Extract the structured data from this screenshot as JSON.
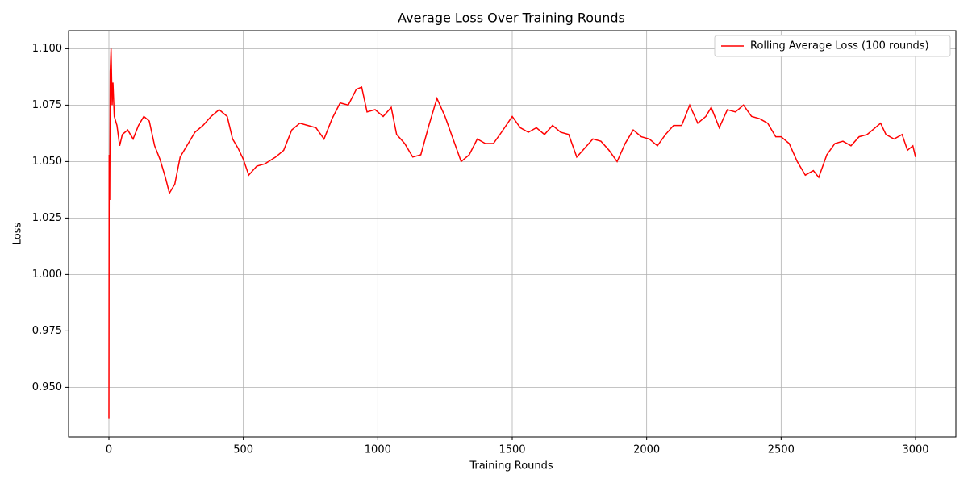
{
  "chart_data": {
    "type": "line",
    "title": "Average Loss Over Training Rounds",
    "xlabel": "Training Rounds",
    "ylabel": "Loss",
    "x": [
      0,
      1,
      3,
      5,
      8,
      12,
      15,
      20,
      30,
      40,
      50,
      70,
      90,
      110,
      130,
      150,
      170,
      190,
      210,
      225,
      245,
      265,
      290,
      320,
      350,
      380,
      410,
      440,
      460,
      480,
      500,
      520,
      550,
      580,
      620,
      650,
      680,
      710,
      740,
      770,
      800,
      830,
      860,
      890,
      920,
      940,
      960,
      990,
      1020,
      1050,
      1070,
      1100,
      1130,
      1160,
      1190,
      1220,
      1250,
      1280,
      1310,
      1340,
      1370,
      1400,
      1430,
      1460,
      1500,
      1530,
      1560,
      1590,
      1620,
      1650,
      1680,
      1710,
      1740,
      1770,
      1800,
      1830,
      1860,
      1890,
      1920,
      1950,
      1980,
      2010,
      2040,
      2070,
      2100,
      2130,
      2160,
      2190,
      2220,
      2240,
      2270,
      2300,
      2330,
      2360,
      2390,
      2420,
      2450,
      2480,
      2500,
      2530,
      2560,
      2590,
      2620,
      2640,
      2670,
      2700,
      2730,
      2760,
      2790,
      2820,
      2850,
      2870,
      2890,
      2920,
      2950,
      2970,
      2990,
      3000
    ],
    "series": [
      {
        "name": "Rolling Average Loss (100 rounds)",
        "color": "#ff0000",
        "values": [
          0.936,
          1.053,
          1.033,
          1.09,
          1.1,
          1.075,
          1.085,
          1.07,
          1.066,
          1.057,
          1.062,
          1.064,
          1.06,
          1.066,
          1.07,
          1.068,
          1.057,
          1.051,
          1.043,
          1.036,
          1.04,
          1.052,
          1.057,
          1.063,
          1.066,
          1.07,
          1.073,
          1.07,
          1.06,
          1.056,
          1.051,
          1.044,
          1.048,
          1.049,
          1.052,
          1.055,
          1.064,
          1.067,
          1.066,
          1.065,
          1.06,
          1.069,
          1.076,
          1.075,
          1.082,
          1.083,
          1.072,
          1.073,
          1.07,
          1.074,
          1.062,
          1.058,
          1.052,
          1.053,
          1.066,
          1.078,
          1.07,
          1.06,
          1.05,
          1.053,
          1.06,
          1.058,
          1.058,
          1.063,
          1.07,
          1.065,
          1.063,
          1.065,
          1.062,
          1.066,
          1.063,
          1.062,
          1.052,
          1.056,
          1.06,
          1.059,
          1.055,
          1.05,
          1.058,
          1.064,
          1.061,
          1.06,
          1.057,
          1.062,
          1.066,
          1.066,
          1.075,
          1.067,
          1.07,
          1.074,
          1.065,
          1.073,
          1.072,
          1.075,
          1.07,
          1.069,
          1.067,
          1.061,
          1.061,
          1.058,
          1.05,
          1.044,
          1.046,
          1.043,
          1.053,
          1.058,
          1.059,
          1.057,
          1.061,
          1.062,
          1.065,
          1.067,
          1.062,
          1.06,
          1.062,
          1.055,
          1.057,
          1.052
        ]
      }
    ],
    "xlim": [
      -150,
      3150
    ],
    "xticks": [
      0,
      500,
      1000,
      1500,
      2000,
      2500,
      3000
    ],
    "ylim": [
      0.928,
      1.108
    ],
    "yticks": [
      {
        "value": 0.95,
        "label": "0.950"
      },
      {
        "value": 0.975,
        "label": "0.975"
      },
      {
        "value": 1.0,
        "label": "1.000"
      },
      {
        "value": 1.025,
        "label": "1.025"
      },
      {
        "value": 1.05,
        "label": "1.050"
      },
      {
        "value": 1.075,
        "label": "1.075"
      },
      {
        "value": 1.1,
        "label": "1.100"
      }
    ],
    "grid": true,
    "legend": "upper right"
  }
}
